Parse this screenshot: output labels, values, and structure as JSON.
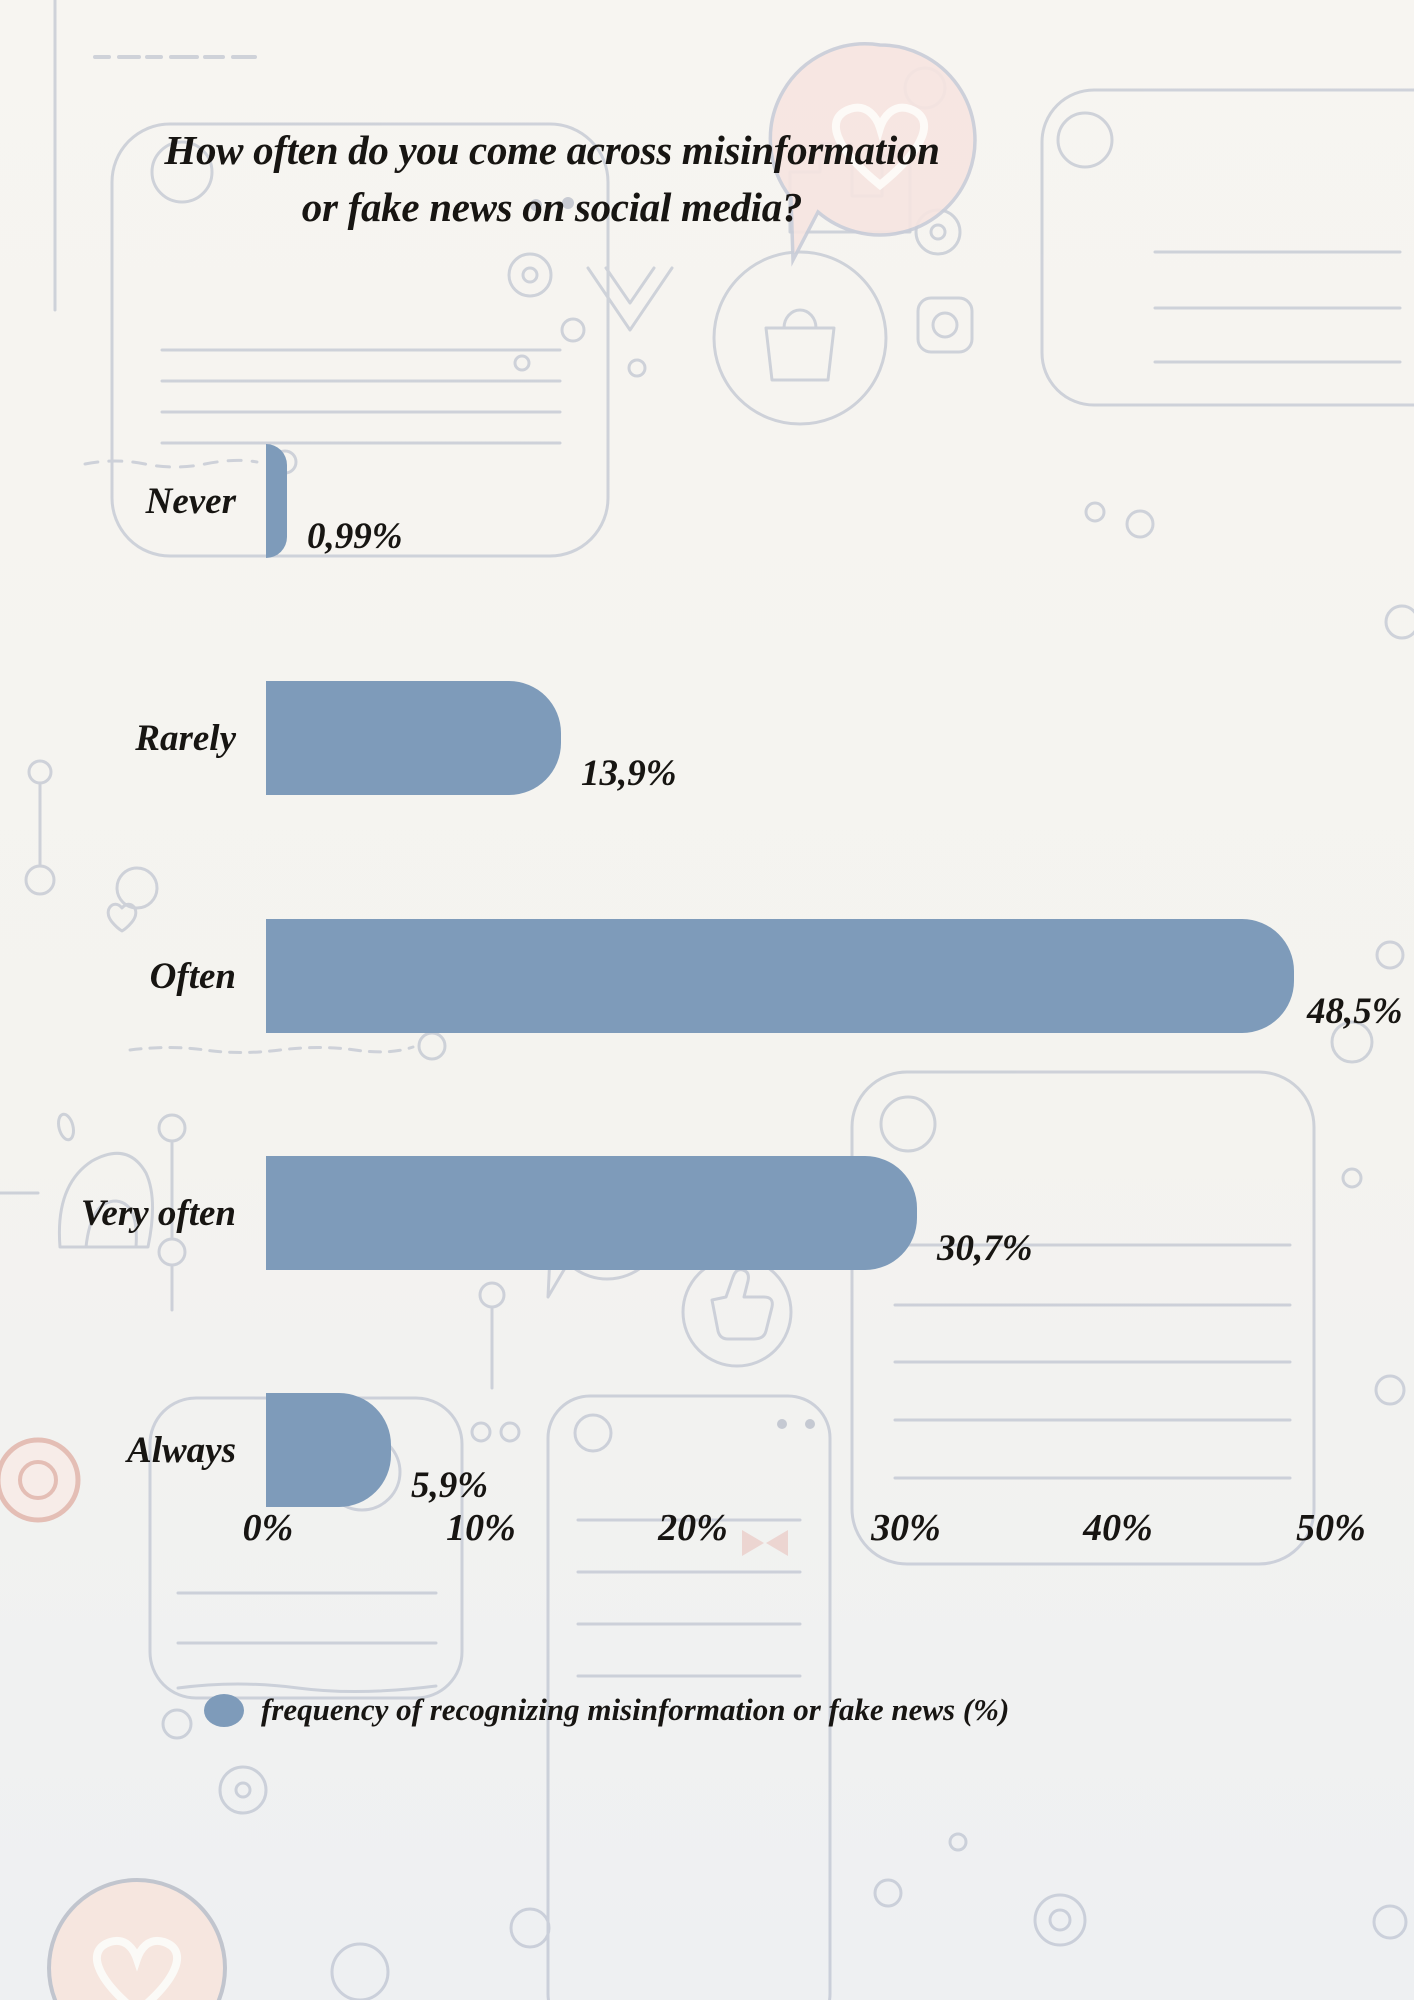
{
  "title": {
    "line1": "How often do you come across misinformation",
    "line2": "or fake news on social media?"
  },
  "chart_data": {
    "type": "bar",
    "orientation": "horizontal",
    "title": "How often do you come across misinformation or fake news on social media?",
    "categories": [
      "Never",
      "Rarely",
      "Often",
      "Very often",
      "Always"
    ],
    "values": [
      0.99,
      13.9,
      48.5,
      30.7,
      5.9
    ],
    "value_labels": [
      "0,99%",
      "13,9%",
      "48,5%",
      "30,7%",
      "5,9%"
    ],
    "x_ticks": [
      "0%",
      "10%",
      "20%",
      "30%",
      "40%",
      "50%"
    ],
    "xlim": [
      0,
      50
    ],
    "grid": false,
    "bar_color": "#7E9BBA",
    "legend": {
      "position": "bottom",
      "marker_color": "#7E9BBA",
      "label": "frequency of recognizing misinformation or fake news (%)"
    }
  },
  "background": {
    "base_color": "#f4f3ef",
    "doodle_stroke": "#a8b0c3",
    "accent_pink_fill": "#f7e5e1",
    "accent_pink_stroke": "#e2b5ab"
  }
}
